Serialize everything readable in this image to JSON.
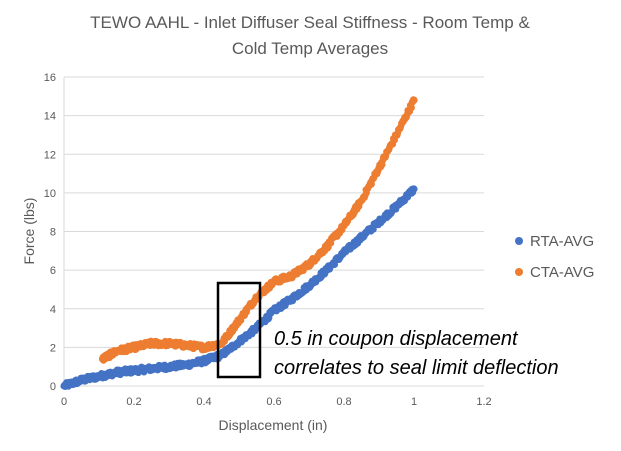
{
  "chart_data": {
    "type": "scatter",
    "title_lines": [
      "TEWO AAHL - Inlet Diffuser Seal Stiffness - Room Temp &",
      "Cold Temp Averages"
    ],
    "xlabel": "Displacement (in)",
    "ylabel": "Force (lbs)",
    "xlim": [
      0,
      1.2
    ],
    "ylim": [
      0,
      16
    ],
    "xticks": [
      0,
      0.2,
      0.4,
      0.6,
      0.8,
      1,
      1.2
    ],
    "yticks": [
      0,
      2,
      4,
      6,
      8,
      10,
      12,
      14,
      16
    ],
    "grid": "horizontal",
    "legend_position": "right",
    "series": [
      {
        "name": "RTA-AVG",
        "color": "#4472C4",
        "x": [
          0,
          0.05,
          0.1,
          0.15,
          0.2,
          0.25,
          0.3,
          0.35,
          0.4,
          0.45,
          0.5,
          0.55,
          0.6,
          0.65,
          0.7,
          0.75,
          0.8,
          0.85,
          0.9,
          0.95,
          1.0
        ],
        "y": [
          0.0,
          0.3,
          0.5,
          0.7,
          0.8,
          0.9,
          1.0,
          1.1,
          1.3,
          1.6,
          2.3,
          3.0,
          3.9,
          4.5,
          5.2,
          6.0,
          6.9,
          7.7,
          8.5,
          9.3,
          10.2
        ]
      },
      {
        "name": "CTA-AVG",
        "color": "#ED7D31",
        "x": [
          0.11,
          0.15,
          0.2,
          0.25,
          0.3,
          0.35,
          0.4,
          0.45,
          0.5,
          0.55,
          0.6,
          0.65,
          0.7,
          0.75,
          0.8,
          0.85,
          0.9,
          0.95,
          1.0
        ],
        "y": [
          1.4,
          1.8,
          2.0,
          2.2,
          2.2,
          2.1,
          2.0,
          2.2,
          3.4,
          4.6,
          5.4,
          5.7,
          6.3,
          7.2,
          8.3,
          9.6,
          11.3,
          13.0,
          14.8
        ]
      }
    ],
    "annotation": {
      "lines": [
        "0.5 in coupon displacement",
        "correlates to seal limit deflection"
      ]
    }
  }
}
